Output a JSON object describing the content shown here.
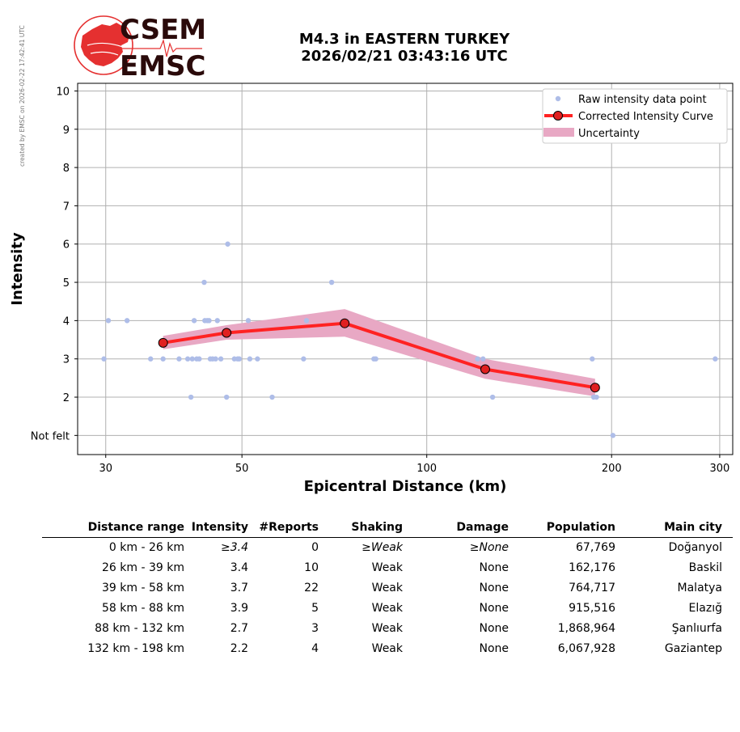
{
  "watermark": "created by EMSC on 2026-02-22 17:42:41 UTC",
  "logo": {
    "line1": "CSEM",
    "line2": "EMSC"
  },
  "header": {
    "line1": "M4.3 in EASTERN TURKEY",
    "line2": "2026/02/21 03:43:16 UTC"
  },
  "colors": {
    "raw": "#aebde8",
    "curve": "#ff2222",
    "marker_fill": "#e02020",
    "band": "#e8a8c4",
    "grid": "#b0b0b0",
    "logo_red": "#e53030",
    "logo_text": "#2a0a0a"
  },
  "chart_data": {
    "type": "scatter",
    "xscale": "log",
    "xlabel": "Epicentral Distance (km)",
    "ylabel": "Intensity",
    "xlim": [
      27,
      315
    ],
    "ylim": [
      0.5,
      10.2
    ],
    "xticks": [
      30,
      50,
      100,
      200,
      300
    ],
    "yticks": [
      {
        "v": 10,
        "label": "10"
      },
      {
        "v": 9,
        "label": "9"
      },
      {
        "v": 8,
        "label": "8"
      },
      {
        "v": 7,
        "label": "7"
      },
      {
        "v": 6,
        "label": "6"
      },
      {
        "v": 5,
        "label": "5"
      },
      {
        "v": 4,
        "label": "4"
      },
      {
        "v": 3,
        "label": "3"
      },
      {
        "v": 2,
        "label": "2"
      },
      {
        "v": 1,
        "label": "Not felt"
      }
    ],
    "grid": true,
    "legend_position": "top-right",
    "legend": [
      "Raw intensity data point",
      "Corrected Intensity Curve",
      "Uncertainty"
    ],
    "raw_points": [
      [
        29.8,
        3
      ],
      [
        30.3,
        4
      ],
      [
        32.5,
        4
      ],
      [
        35.5,
        3
      ],
      [
        37.2,
        3
      ],
      [
        39.5,
        3
      ],
      [
        40.8,
        3
      ],
      [
        41.3,
        2
      ],
      [
        41.5,
        3
      ],
      [
        41.8,
        4
      ],
      [
        42.2,
        3
      ],
      [
        42.6,
        3
      ],
      [
        43.4,
        5
      ],
      [
        43.5,
        4
      ],
      [
        43.9,
        4
      ],
      [
        44.2,
        4
      ],
      [
        44.4,
        3
      ],
      [
        44.8,
        3
      ],
      [
        45.3,
        3
      ],
      [
        45.6,
        4
      ],
      [
        46.2,
        3
      ],
      [
        47.2,
        2
      ],
      [
        47.4,
        6
      ],
      [
        48.6,
        3
      ],
      [
        49.2,
        3
      ],
      [
        49.5,
        3
      ],
      [
        51.2,
        4
      ],
      [
        51.5,
        3
      ],
      [
        53.0,
        3
      ],
      [
        56.0,
        2
      ],
      [
        63.0,
        3
      ],
      [
        63.7,
        4
      ],
      [
        70.0,
        5
      ],
      [
        82.0,
        3
      ],
      [
        82.6,
        3
      ],
      [
        121.0,
        3
      ],
      [
        123.5,
        3
      ],
      [
        128.0,
        2
      ],
      [
        186.0,
        3
      ],
      [
        187.0,
        2
      ],
      [
        189.0,
        2
      ],
      [
        201.0,
        1
      ],
      [
        295.0,
        3
      ]
    ],
    "curve": [
      {
        "x": 37.2,
        "y": 3.42
      },
      {
        "x": 47.2,
        "y": 3.68
      },
      {
        "x": 73.5,
        "y": 3.93
      },
      {
        "x": 124.5,
        "y": 2.73
      },
      {
        "x": 188.0,
        "y": 2.25
      }
    ],
    "band": [
      {
        "x": 37.2,
        "lo": 3.25,
        "hi": 3.6
      },
      {
        "x": 47.2,
        "lo": 3.5,
        "hi": 3.88
      },
      {
        "x": 73.5,
        "lo": 3.58,
        "hi": 4.3
      },
      {
        "x": 124.5,
        "lo": 2.48,
        "hi": 3.0
      },
      {
        "x": 188.0,
        "lo": 2.02,
        "hi": 2.48
      }
    ]
  },
  "table": {
    "headers": [
      "Distance range",
      "Intensity",
      "#Reports",
      "Shaking",
      "Damage",
      "Population",
      "Main city"
    ],
    "rows": [
      [
        "0 km -   26 km",
        "≥3.4",
        "0",
        "≥Weak",
        "≥None",
        "67,769",
        "Doğanyol"
      ],
      [
        "26 km -   39 km",
        "3.4",
        "10",
        "Weak",
        "None",
        "162,176",
        "Baskil"
      ],
      [
        "39 km -   58 km",
        "3.7",
        "22",
        "Weak",
        "None",
        "764,717",
        "Malatya"
      ],
      [
        "58 km -   88 km",
        "3.9",
        "5",
        "Weak",
        "None",
        "915,516",
        "Elazığ"
      ],
      [
        "88 km -  132 km",
        "2.7",
        "3",
        "Weak",
        "None",
        "1,868,964",
        "Şanlıurfa"
      ],
      [
        "132 km -  198 km",
        "2.2",
        "4",
        "Weak",
        "None",
        "6,067,928",
        "Gaziantep"
      ]
    ]
  }
}
